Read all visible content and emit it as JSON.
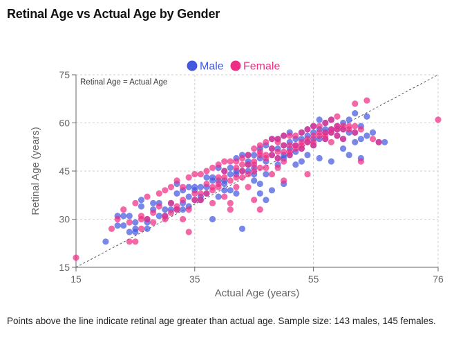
{
  "title": "Retinal Age vs Actual Age by Gender",
  "caption": "Points above the line indicate retinal age greater than actual age. Sample size: 143 males, 145 females.",
  "colors": {
    "male": "#4559e0",
    "female": "#ee2e84",
    "grid": "#cccccc",
    "axis": "#666666",
    "reference_line": "#555555"
  },
  "chart_data": {
    "type": "scatter",
    "title": "",
    "xlabel": "Actual Age (years)",
    "ylabel": "Retinal Age (years)",
    "xlim": [
      15,
      76
    ],
    "ylim": [
      15,
      75
    ],
    "xticks": [
      15,
      35,
      55,
      76
    ],
    "yticks": [
      15,
      30,
      45,
      60,
      75
    ],
    "grid": true,
    "legend_position": "top-center",
    "reference_line": {
      "label": "Retinal Age = Actual Age",
      "from": [
        15,
        15
      ],
      "to": [
        76,
        76
      ]
    },
    "series": [
      {
        "name": "Male",
        "points": [
          [
            20,
            23
          ],
          [
            22,
            31
          ],
          [
            23,
            31
          ],
          [
            23,
            28
          ],
          [
            24,
            31
          ],
          [
            24,
            26
          ],
          [
            25,
            27
          ],
          [
            25,
            26
          ],
          [
            26,
            34
          ],
          [
            27,
            27
          ],
          [
            27,
            29
          ],
          [
            28,
            33
          ],
          [
            29,
            35
          ],
          [
            30,
            33
          ],
          [
            31,
            33
          ],
          [
            31,
            35
          ],
          [
            32,
            38
          ],
          [
            32,
            41
          ],
          [
            33,
            39
          ],
          [
            33,
            35
          ],
          [
            34,
            34
          ],
          [
            34,
            40
          ],
          [
            35,
            40
          ],
          [
            35,
            39
          ],
          [
            36,
            37
          ],
          [
            36,
            40
          ],
          [
            37,
            43
          ],
          [
            37,
            40
          ],
          [
            38,
            42
          ],
          [
            38,
            30
          ],
          [
            39,
            46
          ],
          [
            39,
            42
          ],
          [
            40,
            45
          ],
          [
            40,
            41
          ],
          [
            41,
            44
          ],
          [
            41,
            39
          ],
          [
            42,
            49
          ],
          [
            42,
            45
          ],
          [
            42,
            38
          ],
          [
            43,
            50
          ],
          [
            43,
            45
          ],
          [
            43,
            27
          ],
          [
            44,
            50
          ],
          [
            44,
            48
          ],
          [
            45,
            50
          ],
          [
            45,
            44
          ],
          [
            45,
            42
          ],
          [
            46,
            52
          ],
          [
            46,
            49
          ],
          [
            46,
            41
          ],
          [
            47,
            53
          ],
          [
            47,
            48
          ],
          [
            47,
            44
          ],
          [
            48,
            55
          ],
          [
            48,
            50
          ],
          [
            48,
            39
          ],
          [
            49,
            55
          ],
          [
            49,
            52
          ],
          [
            49,
            47
          ],
          [
            50,
            56
          ],
          [
            50,
            53
          ],
          [
            50,
            49
          ],
          [
            50,
            41
          ],
          [
            51,
            57
          ],
          [
            51,
            54
          ],
          [
            51,
            50
          ],
          [
            52,
            55
          ],
          [
            52,
            51
          ],
          [
            52,
            47
          ],
          [
            53,
            57
          ],
          [
            53,
            55
          ],
          [
            53,
            48
          ],
          [
            54,
            58
          ],
          [
            54,
            56
          ],
          [
            54,
            50
          ],
          [
            55,
            59
          ],
          [
            55,
            57
          ],
          [
            55,
            53
          ],
          [
            56,
            61
          ],
          [
            56,
            58
          ],
          [
            56,
            55
          ],
          [
            56,
            49
          ],
          [
            57,
            60
          ],
          [
            57,
            58
          ],
          [
            57,
            55
          ],
          [
            58,
            61
          ],
          [
            58,
            57
          ],
          [
            58,
            48
          ],
          [
            59,
            59
          ],
          [
            59,
            56
          ],
          [
            60,
            58
          ],
          [
            60,
            55
          ],
          [
            60,
            52
          ],
          [
            61,
            61
          ],
          [
            61,
            57
          ],
          [
            61,
            50
          ],
          [
            62,
            63
          ],
          [
            62,
            57
          ],
          [
            62,
            54
          ],
          [
            63,
            59
          ],
          [
            63,
            55
          ],
          [
            63,
            49
          ],
          [
            64,
            62
          ],
          [
            64,
            56
          ],
          [
            65,
            57
          ],
          [
            66,
            54
          ],
          [
            67,
            54
          ],
          [
            44,
            47
          ],
          [
            46,
            38
          ],
          [
            47,
            36
          ],
          [
            40,
            39
          ],
          [
            39,
            37
          ],
          [
            30,
            31
          ],
          [
            28,
            35
          ],
          [
            26,
            36
          ],
          [
            33,
            33
          ],
          [
            36,
            36
          ],
          [
            38,
            43
          ],
          [
            41,
            46
          ],
          [
            52,
            53
          ],
          [
            53,
            52
          ],
          [
            49,
            49
          ],
          [
            48,
            52
          ],
          [
            54,
            54
          ],
          [
            57,
            57
          ],
          [
            58,
            58
          ],
          [
            60,
            60
          ],
          [
            59,
            58
          ],
          [
            55,
            55
          ],
          [
            51,
            52
          ],
          [
            50,
            50
          ],
          [
            45,
            46
          ],
          [
            44,
            45
          ],
          [
            42,
            44
          ],
          [
            40,
            42
          ],
          [
            37,
            38
          ],
          [
            35,
            36
          ],
          [
            34,
            37
          ],
          [
            32,
            33
          ],
          [
            29,
            31
          ],
          [
            27,
            30
          ],
          [
            25,
            29
          ],
          [
            22,
            28
          ]
        ]
      },
      {
        "name": "Female",
        "points": [
          [
            15,
            18
          ],
          [
            21,
            27
          ],
          [
            22,
            30
          ],
          [
            23,
            33
          ],
          [
            24,
            23
          ],
          [
            24,
            29
          ],
          [
            25,
            23
          ],
          [
            25,
            35
          ],
          [
            26,
            31
          ],
          [
            26,
            30
          ],
          [
            27,
            37
          ],
          [
            27,
            30
          ],
          [
            28,
            32
          ],
          [
            29,
            38
          ],
          [
            29,
            34
          ],
          [
            30,
            39
          ],
          [
            30,
            31
          ],
          [
            31,
            40
          ],
          [
            31,
            35
          ],
          [
            32,
            42
          ],
          [
            32,
            34
          ],
          [
            33,
            40
          ],
          [
            33,
            30
          ],
          [
            34,
            43
          ],
          [
            34,
            33
          ],
          [
            34,
            26
          ],
          [
            35,
            44
          ],
          [
            35,
            38
          ],
          [
            36,
            44
          ],
          [
            36,
            36
          ],
          [
            37,
            45
          ],
          [
            37,
            38
          ],
          [
            38,
            46
          ],
          [
            38,
            40
          ],
          [
            38,
            35
          ],
          [
            39,
            47
          ],
          [
            39,
            43
          ],
          [
            39,
            40
          ],
          [
            40,
            48
          ],
          [
            40,
            45
          ],
          [
            40,
            37
          ],
          [
            41,
            48
          ],
          [
            41,
            42
          ],
          [
            41,
            33
          ],
          [
            42,
            48
          ],
          [
            42,
            46
          ],
          [
            42,
            40
          ],
          [
            43,
            49
          ],
          [
            43,
            45
          ],
          [
            44,
            50
          ],
          [
            44,
            47
          ],
          [
            44,
            40
          ],
          [
            45,
            52
          ],
          [
            45,
            48
          ],
          [
            45,
            36
          ],
          [
            46,
            53
          ],
          [
            46,
            51
          ],
          [
            46,
            33
          ],
          [
            47,
            54
          ],
          [
            47,
            50
          ],
          [
            47,
            46
          ],
          [
            48,
            55
          ],
          [
            48,
            52
          ],
          [
            48,
            44
          ],
          [
            49,
            55
          ],
          [
            49,
            51
          ],
          [
            49,
            46
          ],
          [
            50,
            56
          ],
          [
            50,
            53
          ],
          [
            50,
            48
          ],
          [
            50,
            42
          ],
          [
            51,
            56
          ],
          [
            51,
            53
          ],
          [
            52,
            56
          ],
          [
            52,
            53
          ],
          [
            53,
            57
          ],
          [
            53,
            54
          ],
          [
            54,
            58
          ],
          [
            54,
            55
          ],
          [
            54,
            44
          ],
          [
            55,
            59
          ],
          [
            55,
            56
          ],
          [
            56,
            59
          ],
          [
            56,
            57
          ],
          [
            57,
            60
          ],
          [
            57,
            56
          ],
          [
            58,
            61
          ],
          [
            58,
            58
          ],
          [
            58,
            54
          ],
          [
            59,
            62
          ],
          [
            59,
            59
          ],
          [
            60,
            59
          ],
          [
            60,
            55
          ],
          [
            61,
            59
          ],
          [
            62,
            66
          ],
          [
            62,
            59
          ],
          [
            63,
            58
          ],
          [
            63,
            48
          ],
          [
            64,
            67
          ],
          [
            65,
            55
          ],
          [
            66,
            54
          ],
          [
            76,
            61
          ],
          [
            41,
            35
          ],
          [
            43,
            47
          ],
          [
            46,
            50
          ],
          [
            49,
            54
          ],
          [
            51,
            51
          ],
          [
            53,
            53
          ],
          [
            55,
            54
          ],
          [
            57,
            57
          ],
          [
            59,
            58
          ],
          [
            44,
            44
          ],
          [
            42,
            43
          ],
          [
            39,
            41
          ],
          [
            36,
            38
          ],
          [
            33,
            36
          ],
          [
            31,
            32
          ],
          [
            28,
            29
          ],
          [
            26,
            27
          ],
          [
            37,
            41
          ],
          [
            40,
            43
          ],
          [
            45,
            47
          ],
          [
            47,
            49
          ],
          [
            48,
            50
          ],
          [
            50,
            51
          ],
          [
            52,
            52
          ],
          [
            54,
            54
          ],
          [
            56,
            56
          ],
          [
            58,
            57
          ],
          [
            60,
            58
          ],
          [
            61,
            58
          ],
          [
            62,
            57
          ],
          [
            45,
            45
          ],
          [
            43,
            43
          ],
          [
            38,
            39
          ],
          [
            35,
            36
          ],
          [
            32,
            33
          ],
          [
            30,
            30
          ],
          [
            46,
            46
          ],
          [
            49,
            49
          ],
          [
            51,
            50
          ],
          [
            53,
            52
          ],
          [
            55,
            53
          ],
          [
            57,
            55
          ],
          [
            59,
            56
          ]
        ]
      }
    ]
  }
}
